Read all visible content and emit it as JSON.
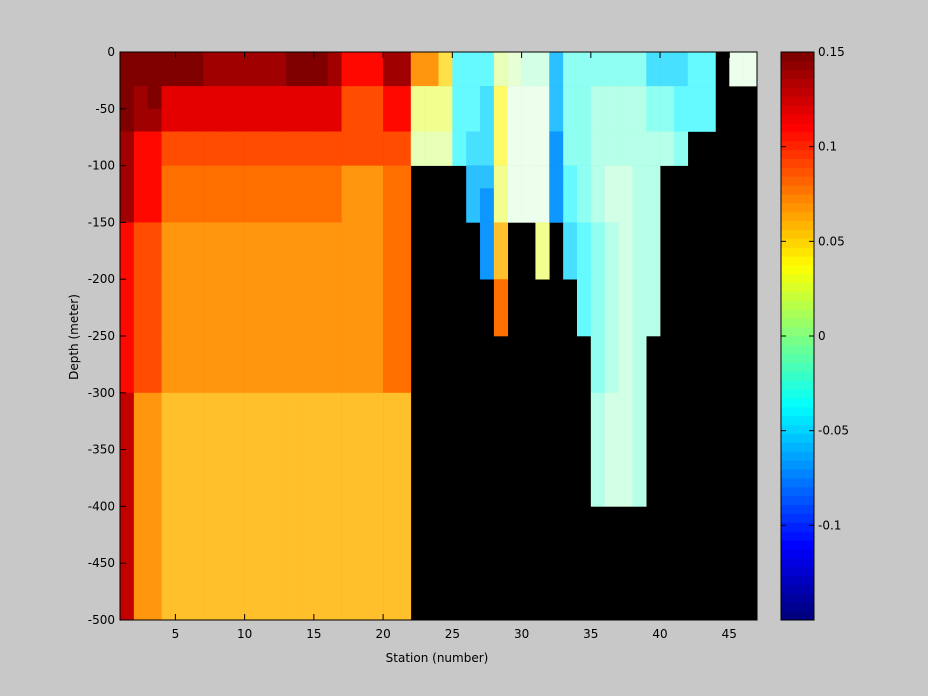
{
  "chart_data": {
    "type": "heatmap",
    "title": "",
    "xlabel": "Station (number)",
    "ylabel": "Depth (meter)",
    "xlim": [
      1,
      47
    ],
    "ylim": [
      -500,
      0
    ],
    "x_ticks": [
      5,
      10,
      15,
      20,
      25,
      30,
      35,
      40,
      45
    ],
    "y_ticks": [
      0,
      -50,
      -100,
      -150,
      -200,
      -250,
      -300,
      -350,
      -400,
      -450,
      -500
    ],
    "colorbar": {
      "colormap": "jet",
      "min": -0.15,
      "max": 0.15,
      "ticks": [
        0.15,
        0.1,
        0.05,
        0,
        -0.05,
        -0.1
      ],
      "tick_labels": [
        "0.15",
        "0.1",
        "0.05",
        "0",
        "-0.05",
        "-0.1"
      ]
    },
    "missing_color": "#000000",
    "stations": [
      1,
      2,
      3,
      4,
      5,
      6,
      7,
      8,
      9,
      10,
      11,
      12,
      13,
      14,
      15,
      16,
      17,
      18,
      19,
      20,
      21,
      22,
      23,
      24,
      25,
      26,
      27,
      28,
      29,
      30,
      31,
      32,
      33,
      34,
      35,
      36,
      37,
      38,
      39,
      40,
      41,
      42,
      43,
      44,
      45,
      46
    ],
    "depths": [
      0,
      -10,
      -30,
      -50,
      -70,
      -100,
      -120,
      -150,
      -200,
      -250,
      -300,
      -400,
      -500
    ],
    "values": [
      [
        0.15,
        0.15,
        0.15,
        0.15,
        0.14,
        0.14,
        0.14,
        0.11,
        0.11,
        0.11,
        0.13,
        0.13,
        0.13
      ],
      [
        0.15,
        0.15,
        0.14,
        0.14,
        0.11,
        0.11,
        0.11,
        0.09,
        0.09,
        0.09,
        0.07,
        0.07,
        0.07
      ],
      [
        0.15,
        0.15,
        0.15,
        0.14,
        0.11,
        0.11,
        0.11,
        0.09,
        0.09,
        0.09,
        0.07,
        0.07,
        0.07
      ],
      [
        0.15,
        0.15,
        0.12,
        0.12,
        0.09,
        0.08,
        0.08,
        0.07,
        0.07,
        0.07,
        0.06,
        0.06,
        0.06
      ],
      [
        0.15,
        0.15,
        0.12,
        0.12,
        0.09,
        0.08,
        0.08,
        0.07,
        0.07,
        0.07,
        0.06,
        0.06,
        0.06
      ],
      [
        0.15,
        0.15,
        0.12,
        0.12,
        0.09,
        0.08,
        0.08,
        0.07,
        0.07,
        0.07,
        0.06,
        0.06,
        0.06
      ],
      [
        0.14,
        0.14,
        0.12,
        0.12,
        0.09,
        0.08,
        0.08,
        0.07,
        0.07,
        0.07,
        0.06,
        0.06,
        0.06
      ],
      [
        0.14,
        0.14,
        0.12,
        0.12,
        0.09,
        0.08,
        0.08,
        0.07,
        0.07,
        0.07,
        0.06,
        0.06,
        0.06
      ],
      [
        0.14,
        0.14,
        0.12,
        0.12,
        0.09,
        0.08,
        0.08,
        0.07,
        0.07,
        0.07,
        0.06,
        0.06,
        0.06
      ],
      [
        0.14,
        0.14,
        0.12,
        0.12,
        0.09,
        0.08,
        0.08,
        0.07,
        0.07,
        0.07,
        0.06,
        0.06,
        0.06
      ],
      [
        0.14,
        0.14,
        0.12,
        0.12,
        0.09,
        0.08,
        0.08,
        0.07,
        0.07,
        0.07,
        0.06,
        0.06,
        0.06
      ],
      [
        0.14,
        0.14,
        0.12,
        0.12,
        0.09,
        0.08,
        0.08,
        0.07,
        0.07,
        0.07,
        0.06,
        0.06,
        0.06
      ],
      [
        0.15,
        0.15,
        0.12,
        0.12,
        0.09,
        0.08,
        0.08,
        0.07,
        0.07,
        0.07,
        0.06,
        0.06,
        0.06
      ],
      [
        0.15,
        0.15,
        0.12,
        0.12,
        0.09,
        0.08,
        0.08,
        0.07,
        0.07,
        0.07,
        0.06,
        0.06,
        0.06
      ],
      [
        0.15,
        0.15,
        0.12,
        0.12,
        0.09,
        0.08,
        0.08,
        0.07,
        0.07,
        0.07,
        0.06,
        0.06,
        0.06
      ],
      [
        0.14,
        0.14,
        0.12,
        0.12,
        0.09,
        0.08,
        0.08,
        0.07,
        0.07,
        0.07,
        0.06,
        0.06,
        0.06
      ],
      [
        0.11,
        0.11,
        0.09,
        0.09,
        0.09,
        0.07,
        0.07,
        0.07,
        0.07,
        0.07,
        0.06,
        0.06,
        0.06
      ],
      [
        0.11,
        0.11,
        0.09,
        0.09,
        0.09,
        0.07,
        0.07,
        0.07,
        0.07,
        0.07,
        0.06,
        0.06,
        0.06
      ],
      [
        0.11,
        0.11,
        0.09,
        0.09,
        0.09,
        0.07,
        0.07,
        0.07,
        0.07,
        0.07,
        0.06,
        0.06,
        0.06
      ],
      [
        0.14,
        0.14,
        0.11,
        0.11,
        0.09,
        0.08,
        0.08,
        0.08,
        0.08,
        0.08,
        0.06,
        0.06,
        0.06
      ],
      [
        0.14,
        0.14,
        0.11,
        0.11,
        0.09,
        0.08,
        0.08,
        0.08,
        0.08,
        0.08,
        0.06,
        0.06,
        0.06
      ],
      [
        0.07,
        0.07,
        0.03,
        0.03,
        0.02,
        null,
        null,
        null,
        null,
        null,
        null,
        null,
        null
      ],
      [
        0.07,
        0.07,
        0.03,
        0.03,
        0.02,
        null,
        null,
        null,
        null,
        null,
        null,
        null,
        null
      ],
      [
        0.05,
        0.05,
        0.03,
        0.03,
        0.02,
        null,
        null,
        null,
        null,
        null,
        null,
        null,
        null
      ],
      [
        -0.04,
        -0.04,
        -0.04,
        -0.04,
        -0.04,
        null,
        null,
        null,
        null,
        null,
        null,
        null,
        null
      ],
      [
        -0.04,
        -0.04,
        -0.04,
        -0.04,
        -0.05,
        -0.06,
        -0.06,
        null,
        null,
        null,
        null,
        null,
        null
      ],
      [
        -0.04,
        -0.04,
        -0.05,
        -0.05,
        -0.05,
        -0.06,
        -0.07,
        -0.07,
        null,
        null,
        null,
        null,
        null
      ],
      [
        0.02,
        0.02,
        0.04,
        0.04,
        0.04,
        0.03,
        0.03,
        0.06,
        0.08,
        null,
        null,
        null,
        null
      ],
      [
        0.01,
        0.01,
        0.0,
        0.0,
        0.0,
        0.0,
        0.0,
        null,
        null,
        null,
        null,
        null,
        null
      ],
      [
        -0.01,
        -0.01,
        0.0,
        0.0,
        0.0,
        0.0,
        0.0,
        null,
        null,
        null,
        null,
        null,
        null
      ],
      [
        -0.01,
        -0.01,
        0.0,
        0.0,
        0.0,
        0.0,
        0.0,
        0.03,
        null,
        null,
        null,
        null,
        null
      ],
      [
        -0.06,
        -0.06,
        -0.06,
        -0.06,
        -0.07,
        -0.07,
        -0.07,
        null,
        null,
        null,
        null,
        null,
        null
      ],
      [
        -0.03,
        -0.03,
        -0.03,
        -0.03,
        -0.03,
        -0.04,
        -0.04,
        -0.05,
        null,
        null,
        null,
        null,
        null
      ],
      [
        -0.03,
        -0.03,
        -0.03,
        -0.03,
        -0.03,
        -0.03,
        -0.03,
        -0.04,
        -0.04,
        null,
        null,
        null,
        null
      ],
      [
        -0.03,
        -0.03,
        -0.02,
        -0.02,
        -0.02,
        -0.02,
        -0.02,
        -0.03,
        -0.03,
        -0.03,
        -0.02,
        null,
        null
      ],
      [
        -0.03,
        -0.03,
        -0.02,
        -0.02,
        -0.02,
        -0.01,
        -0.01,
        -0.02,
        -0.02,
        -0.02,
        -0.01,
        null,
        null
      ],
      [
        -0.03,
        -0.03,
        -0.02,
        -0.02,
        -0.02,
        -0.01,
        -0.01,
        -0.01,
        -0.01,
        -0.01,
        -0.01,
        null,
        null
      ],
      [
        -0.03,
        -0.03,
        -0.02,
        -0.02,
        -0.02,
        -0.02,
        -0.02,
        -0.02,
        -0.02,
        -0.02,
        -0.02,
        null,
        null
      ],
      [
        -0.05,
        -0.05,
        -0.03,
        -0.03,
        -0.02,
        -0.02,
        -0.02,
        -0.02,
        -0.02,
        null,
        null,
        null,
        null
      ],
      [
        -0.05,
        -0.05,
        -0.03,
        -0.03,
        -0.02,
        null,
        null,
        null,
        null,
        null,
        null,
        null,
        null
      ],
      [
        -0.05,
        -0.05,
        -0.04,
        -0.04,
        -0.03,
        null,
        null,
        null,
        null,
        null,
        null,
        null,
        null
      ],
      [
        -0.04,
        -0.04,
        -0.04,
        -0.04,
        null,
        null,
        null,
        null,
        null,
        null,
        null,
        null,
        null
      ],
      [
        -0.04,
        -0.04,
        -0.04,
        -0.04,
        null,
        null,
        null,
        null,
        null,
        null,
        null,
        null,
        null
      ],
      [
        null,
        null,
        null,
        null,
        null,
        null,
        null,
        null,
        null,
        null,
        null,
        null,
        null
      ],
      [
        0.0,
        0.0,
        null,
        null,
        null,
        null,
        null,
        null,
        null,
        null,
        null,
        null,
        null
      ],
      [
        0.0,
        0.0,
        null,
        null,
        null,
        null,
        null,
        null,
        null,
        null,
        null,
        null,
        null
      ]
    ]
  }
}
